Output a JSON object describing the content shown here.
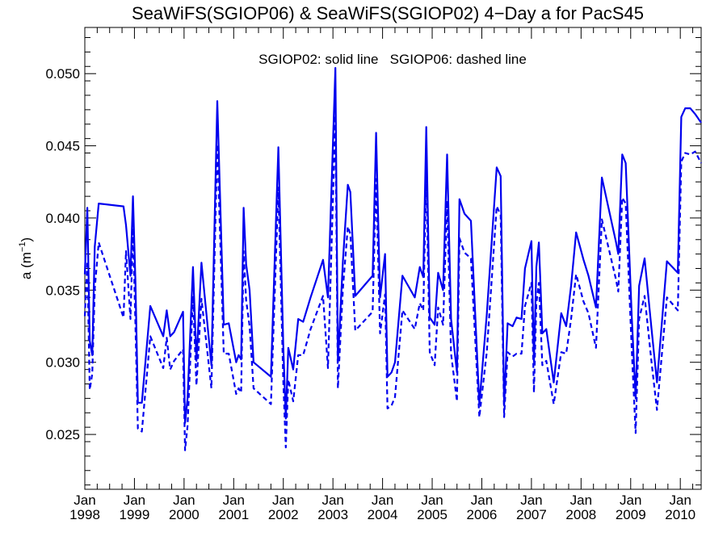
{
  "chart_data": {
    "type": "line",
    "title": "SeaWiFS(SGIOP06) & SeaWiFS(SGIOP02) 4−Day a for PacS45",
    "annotation": "SGIOP02: solid line   SGIOP06: dashed line",
    "ylabel": "a (m⁻¹)",
    "ylabel_main": "a (m",
    "ylabel_sup": "−1",
    "ylabel_close": ")",
    "xlim": [
      1998.0,
      2010.42
    ],
    "ylim": [
      0.0212,
      0.0532
    ],
    "yticks": [
      {
        "value": 0.025,
        "label": "0.025"
      },
      {
        "value": 0.03,
        "label": "0.030"
      },
      {
        "value": 0.035,
        "label": "0.035"
      },
      {
        "value": 0.04,
        "label": "0.040"
      },
      {
        "value": 0.045,
        "label": "0.045"
      },
      {
        "value": 0.05,
        "label": "0.050"
      }
    ],
    "xticks": [
      {
        "value": 1998,
        "month": "Jan",
        "year": "1998"
      },
      {
        "value": 1999,
        "month": "Jan",
        "year": "1999"
      },
      {
        "value": 2000,
        "month": "Jan",
        "year": "2000"
      },
      {
        "value": 2001,
        "month": "Jan",
        "year": "2001"
      },
      {
        "value": 2002,
        "month": "Jan",
        "year": "2002"
      },
      {
        "value": 2003,
        "month": "Jan",
        "year": "2003"
      },
      {
        "value": 2004,
        "month": "Jan",
        "year": "2004"
      },
      {
        "value": 2005,
        "month": "Jan",
        "year": "2005"
      },
      {
        "value": 2006,
        "month": "Jan",
        "year": "2006"
      },
      {
        "value": 2007,
        "month": "Jan",
        "year": "2007"
      },
      {
        "value": 2008,
        "month": "Jan",
        "year": "2008"
      },
      {
        "value": 2009,
        "month": "Jan",
        "year": "2009"
      },
      {
        "value": 2010,
        "month": "Jan",
        "year": "2010"
      }
    ],
    "line_color": "#0000ee",
    "series": [
      {
        "name": "SGIOP02",
        "style": "solid",
        "x": [
          1998.0,
          1998.05,
          1998.1,
          1998.15,
          1998.2,
          1998.28,
          1998.78,
          1998.83,
          1998.92,
          1998.97,
          1999.02,
          1999.07,
          1999.15,
          1999.32,
          1999.58,
          1999.65,
          1999.72,
          1999.8,
          1999.98,
          2000.02,
          2000.07,
          2000.18,
          2000.25,
          2000.35,
          2000.55,
          2000.67,
          2000.8,
          2000.9,
          2001.05,
          2001.1,
          2001.15,
          2001.2,
          2001.25,
          2001.32,
          2001.4,
          2001.75,
          2001.9,
          2002.0,
          2002.05,
          2002.1,
          2002.2,
          2002.3,
          2002.4,
          2002.55,
          2002.8,
          2002.9,
          2003.05,
          2003.1,
          2003.2,
          2003.3,
          2003.35,
          2003.45,
          2003.8,
          2003.87,
          2003.95,
          2004.05,
          2004.1,
          2004.18,
          2004.25,
          2004.4,
          2004.65,
          2004.75,
          2004.82,
          2004.88,
          2004.95,
          2005.05,
          2005.12,
          2005.22,
          2005.3,
          2005.38,
          2005.5,
          2005.55,
          2005.65,
          2005.78,
          2005.95,
          2006.1,
          2006.3,
          2006.38,
          2006.45,
          2006.52,
          2006.62,
          2006.7,
          2006.8,
          2006.87,
          2007.0,
          2007.05,
          2007.1,
          2007.15,
          2007.22,
          2007.3,
          2007.45,
          2007.6,
          2007.7,
          2007.8,
          2007.9,
          2008.05,
          2008.15,
          2008.3,
          2008.42,
          2008.7,
          2008.75,
          2008.83,
          2008.9,
          2009.02,
          2009.1,
          2009.17,
          2009.28,
          2009.42,
          2009.53,
          2009.73,
          2009.95,
          2010.02,
          2010.1,
          2010.2,
          2010.3,
          2010.42
        ],
        "y": [
          0.0361,
          0.0407,
          0.0315,
          0.0305,
          0.038,
          0.041,
          0.0408,
          0.0395,
          0.036,
          0.0415,
          0.0355,
          0.0272,
          0.0272,
          0.0339,
          0.0318,
          0.0336,
          0.0318,
          0.0321,
          0.0335,
          0.0258,
          0.0275,
          0.0366,
          0.0301,
          0.0369,
          0.0298,
          0.0481,
          0.0326,
          0.0327,
          0.03,
          0.0305,
          0.0302,
          0.0407,
          0.0368,
          0.035,
          0.03,
          0.029,
          0.0449,
          0.0311,
          0.0261,
          0.031,
          0.0295,
          0.033,
          0.0328,
          0.0345,
          0.0371,
          0.0345,
          0.0504,
          0.03,
          0.037,
          0.0423,
          0.0418,
          0.0346,
          0.036,
          0.0459,
          0.0345,
          0.0375,
          0.029,
          0.0293,
          0.03,
          0.036,
          0.0345,
          0.0366,
          0.0359,
          0.0463,
          0.0331,
          0.0326,
          0.0362,
          0.035,
          0.0444,
          0.033,
          0.0293,
          0.0413,
          0.0403,
          0.0398,
          0.0271,
          0.0333,
          0.0435,
          0.0429,
          0.027,
          0.0327,
          0.0325,
          0.0331,
          0.033,
          0.0365,
          0.0384,
          0.03,
          0.0366,
          0.0383,
          0.032,
          0.0323,
          0.0286,
          0.0334,
          0.0325,
          0.0353,
          0.039,
          0.0371,
          0.036,
          0.0338,
          0.0428,
          0.0384,
          0.0375,
          0.0444,
          0.0438,
          0.0333,
          0.0275,
          0.0353,
          0.0372,
          0.0323,
          0.0286,
          0.037,
          0.0362,
          0.047,
          0.0476,
          0.0476,
          0.0472,
          0.0466
        ]
      },
      {
        "name": "SGIOP06",
        "style": "dashed",
        "x": [
          1998.0,
          1998.05,
          1998.1,
          1998.15,
          1998.2,
          1998.28,
          1998.78,
          1998.83,
          1998.92,
          1998.97,
          1999.02,
          1999.07,
          1999.15,
          1999.32,
          1999.58,
          1999.65,
          1999.72,
          1999.8,
          1999.98,
          2000.02,
          2000.07,
          2000.18,
          2000.25,
          2000.35,
          2000.55,
          2000.67,
          2000.8,
          2000.9,
          2001.05,
          2001.1,
          2001.15,
          2001.2,
          2001.25,
          2001.32,
          2001.4,
          2001.75,
          2001.9,
          2002.0,
          2002.05,
          2002.1,
          2002.2,
          2002.3,
          2002.4,
          2002.55,
          2002.8,
          2002.9,
          2003.05,
          2003.1,
          2003.2,
          2003.3,
          2003.35,
          2003.45,
          2003.8,
          2003.87,
          2003.95,
          2004.05,
          2004.1,
          2004.18,
          2004.25,
          2004.4,
          2004.65,
          2004.75,
          2004.82,
          2004.88,
          2004.95,
          2005.05,
          2005.12,
          2005.22,
          2005.3,
          2005.38,
          2005.5,
          2005.55,
          2005.65,
          2005.78,
          2005.95,
          2006.1,
          2006.3,
          2006.38,
          2006.45,
          2006.52,
          2006.62,
          2006.7,
          2006.8,
          2006.87,
          2007.0,
          2007.05,
          2007.1,
          2007.15,
          2007.22,
          2007.3,
          2007.45,
          2007.6,
          2007.7,
          2007.8,
          2007.9,
          2008.05,
          2008.15,
          2008.3,
          2008.42,
          2008.7,
          2008.75,
          2008.83,
          2008.9,
          2009.02,
          2009.1,
          2009.17,
          2009.28,
          2009.42,
          2009.53,
          2009.73,
          2009.95,
          2010.02,
          2010.1,
          2010.2,
          2010.3,
          2010.42
        ],
        "y": [
          0.0332,
          0.037,
          0.0281,
          0.0292,
          0.0351,
          0.0383,
          0.0331,
          0.0377,
          0.033,
          0.0393,
          0.0325,
          0.0254,
          0.0252,
          0.0318,
          0.0296,
          0.0317,
          0.0295,
          0.0301,
          0.0309,
          0.0239,
          0.0256,
          0.0346,
          0.0284,
          0.0344,
          0.0282,
          0.0451,
          0.0306,
          0.0306,
          0.0278,
          0.0282,
          0.0279,
          0.0377,
          0.0343,
          0.0325,
          0.0282,
          0.0271,
          0.0421,
          0.0287,
          0.0241,
          0.0288,
          0.0273,
          0.0305,
          0.0305,
          0.0323,
          0.0346,
          0.0296,
          0.0471,
          0.0282,
          0.0351,
          0.0394,
          0.0389,
          0.0322,
          0.0335,
          0.0427,
          0.032,
          0.0347,
          0.0268,
          0.027,
          0.0276,
          0.0336,
          0.0323,
          0.0341,
          0.0336,
          0.0432,
          0.0307,
          0.0298,
          0.0338,
          0.0326,
          0.0412,
          0.0306,
          0.0273,
          0.0386,
          0.0376,
          0.0372,
          0.0262,
          0.0307,
          0.0408,
          0.0402,
          0.0262,
          0.0307,
          0.0304,
          0.0306,
          0.0306,
          0.0339,
          0.0355,
          0.0279,
          0.0341,
          0.0355,
          0.0298,
          0.0301,
          0.0271,
          0.0307,
          0.0306,
          0.033,
          0.0361,
          0.0342,
          0.0334,
          0.031,
          0.0399,
          0.0358,
          0.0349,
          0.0414,
          0.041,
          0.031,
          0.0251,
          0.033,
          0.0346,
          0.03,
          0.0267,
          0.0345,
          0.0336,
          0.0439,
          0.0445,
          0.0444,
          0.0446,
          0.0438
        ]
      }
    ]
  }
}
